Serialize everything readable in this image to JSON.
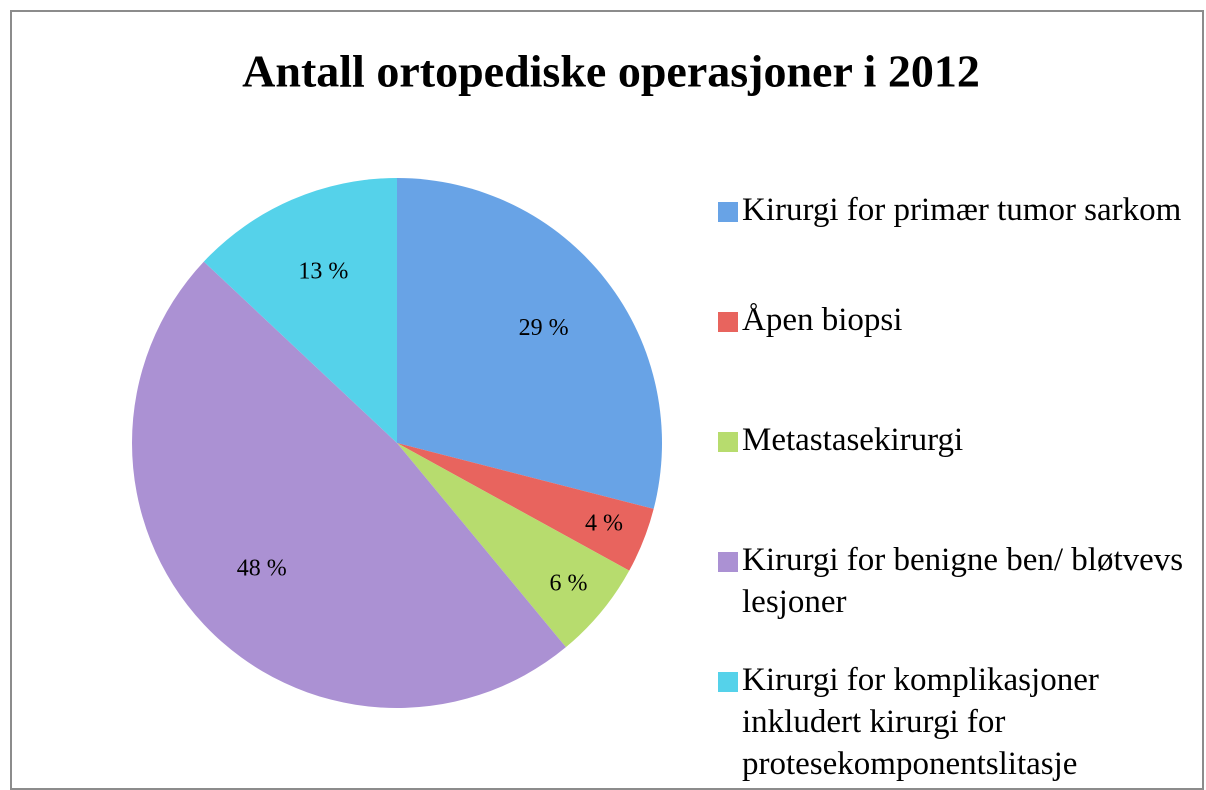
{
  "chart_data": {
    "type": "pie",
    "title": "Antall ortopediske operasjoner i 2012",
    "categories": [
      "Kirurgi for primær tumor sarkom",
      "Åpen biopsi",
      "Metastasekirurgi",
      "Kirurgi for benigne ben/ bløtvevs lesjoner",
      "Kirurgi for komplikasjoner inkludert kirurgi for protesekomponentslitasje"
    ],
    "values": [
      29,
      4,
      6,
      48,
      13
    ],
    "value_labels": [
      "29 %",
      "4 %",
      "6 %",
      "48 %",
      "13 %"
    ],
    "colors": [
      "#68a3e6",
      "#e8645e",
      "#b7dc6e",
      "#ab91d3",
      "#55d2ea"
    ]
  }
}
